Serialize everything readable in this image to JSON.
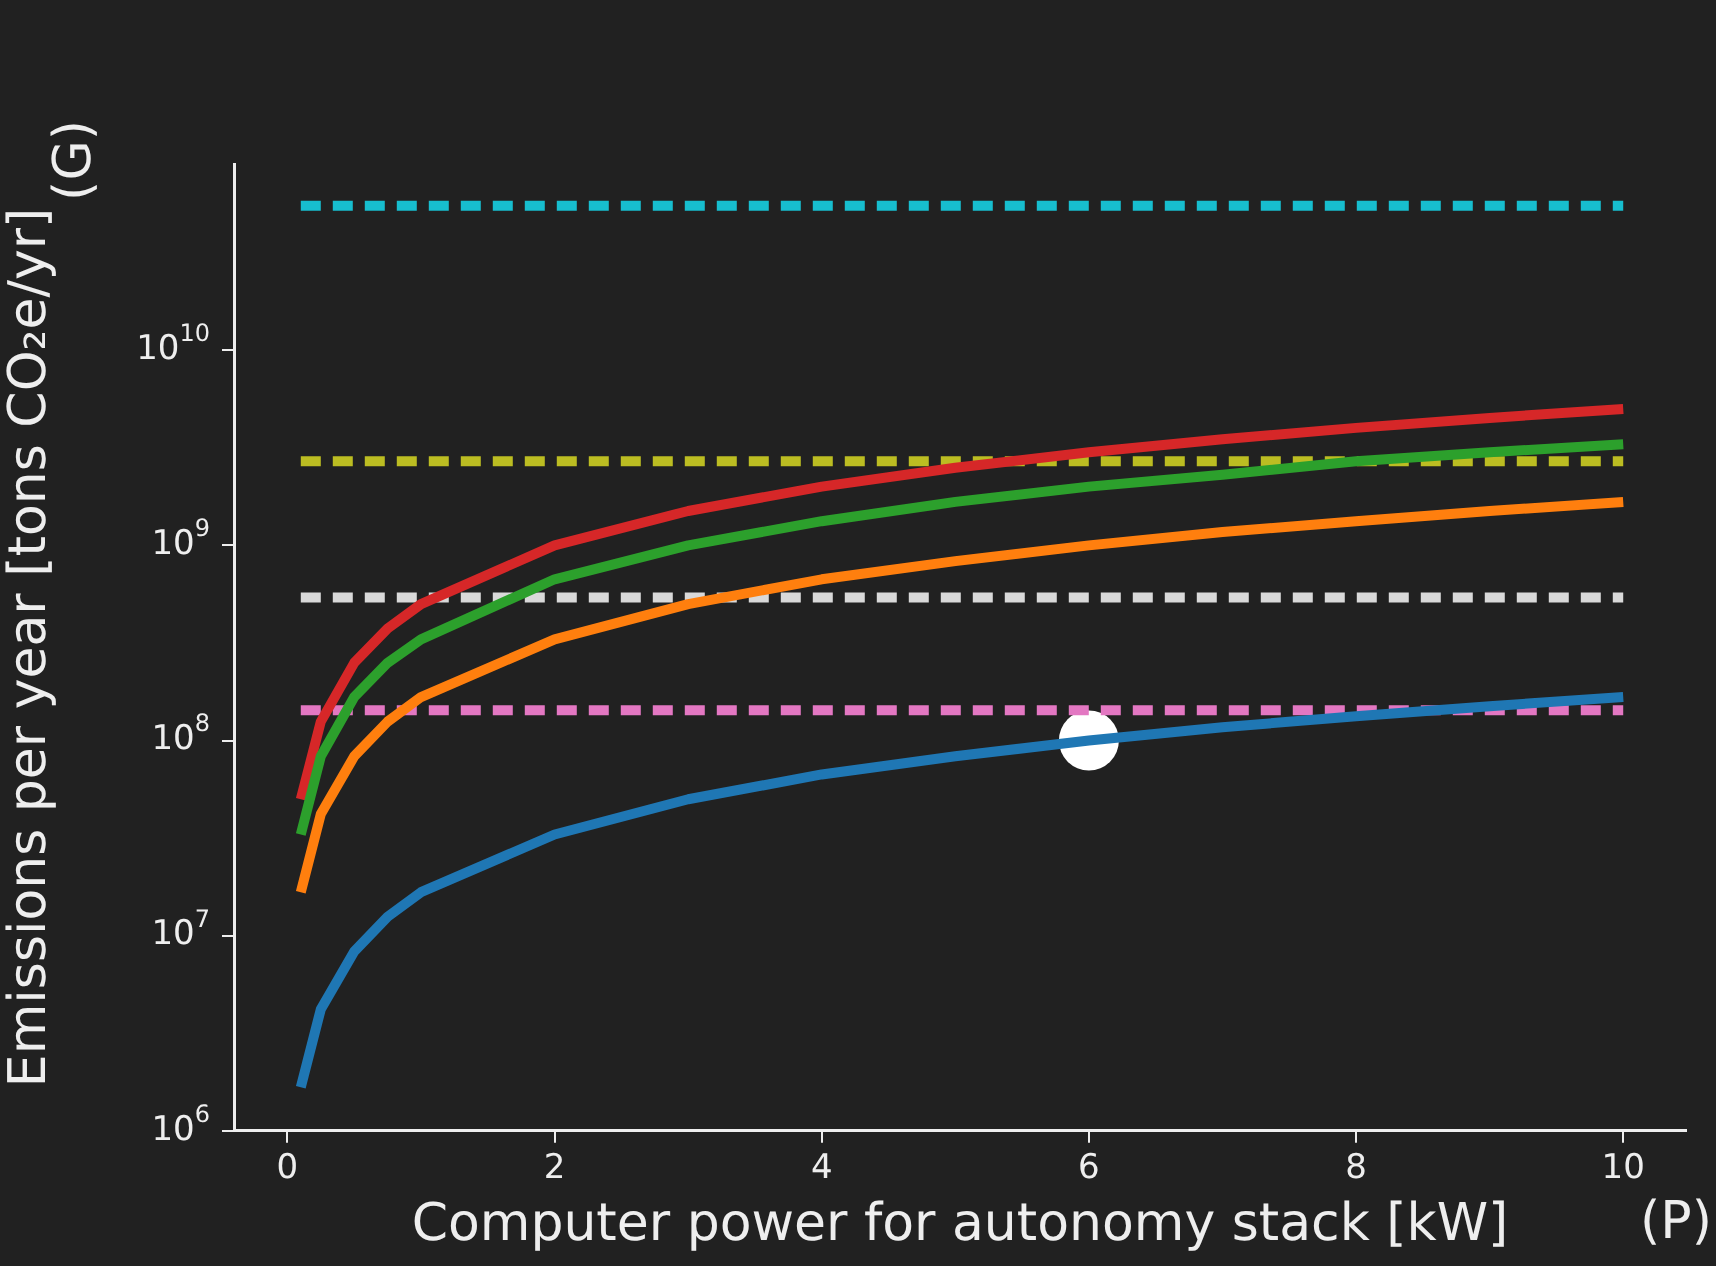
{
  "chart_data": {
    "type": "line",
    "xlabel": "Computer power for autonomy stack [kW]",
    "ylabel": "Emissions per year [tons CO₂e/yr]",
    "annotations": [
      "(G)",
      "(P)"
    ],
    "x": [
      0.1,
      0.25,
      0.5,
      0.75,
      1,
      2,
      3,
      4,
      5,
      6,
      7,
      8,
      9,
      10
    ],
    "series": [
      {
        "color": "#1f77b4",
        "marker": "none",
        "values": [
          1670000.0,
          4200000.0,
          8300000.0,
          12500000.0,
          16700000.0,
          33000000.0,
          50000000.0,
          67000000.0,
          83000000.0,
          100000000.0,
          117000000.0,
          133000000.0,
          150000000.0,
          167000000.0
        ]
      },
      {
        "color": "#ff7f0e",
        "marker": "none",
        "values": [
          16700000.0,
          42000000.0,
          83000000.0,
          125000000.0,
          167000000.0,
          330000000.0,
          500000000.0,
          670000000.0,
          830000000.0,
          1000000000.0,
          1170000000.0,
          1330000000.0,
          1500000000.0,
          1670000000.0
        ]
      },
      {
        "color": "#2ca02c",
        "marker": "none",
        "values": [
          33000000.0,
          83000000.0,
          167000000.0,
          250000000.0,
          330000000.0,
          670000000.0,
          1000000000.0,
          1330000000.0,
          1670000000.0,
          2000000000.0,
          2300000000.0,
          2700000000.0,
          3000000000.0,
          3300000000.0
        ]
      },
      {
        "color": "#d62728",
        "marker": "none",
        "values": [
          50000000.0,
          125000000.0,
          250000000.0,
          375000000.0,
          500000000.0,
          1000000000.0,
          1500000000.0,
          2000000000.0,
          2500000000.0,
          3000000000.0,
          3500000000.0,
          4000000000.0,
          4500000000.0,
          5000000000.0
        ]
      },
      {
        "color": "#17becf",
        "marker": "none",
        "line_style": "dashed",
        "x": [
          0.1,
          10
        ],
        "values": [
          55000000000.0,
          55000000000.0
        ]
      },
      {
        "color": "#bcbd22",
        "marker": "none",
        "line_style": "dashed",
        "x": [
          0.1,
          10
        ],
        "values": [
          2700000000.0,
          2700000000.0
        ]
      },
      {
        "color": "#d9d9d9",
        "marker": "none",
        "line_style": "dashed",
        "x": [
          0.1,
          10
        ],
        "values": [
          540000000.0,
          540000000.0
        ]
      },
      {
        "color": "#e377c2",
        "marker": "none",
        "line_style": "dashed",
        "x": [
          0.1,
          10
        ],
        "values": [
          143000000.0,
          143000000.0
        ]
      },
      {
        "type": "scatter",
        "color": "#ffffff",
        "marker": "circle",
        "x": [
          6
        ],
        "values": [
          100000000.0
        ]
      }
    ],
    "xlim": [
      -0.4,
      10.47
    ],
    "xticks": [
      0,
      2,
      4,
      6,
      8,
      10
    ],
    "log": "y",
    "ylim": [
      1000000.0,
      90000000000.0
    ],
    "yticks": [
      {
        "value": 1000000.0,
        "label": "10$^{6}$"
      },
      {
        "value": 10000000.0,
        "label": "10$^{7}$"
      },
      {
        "value": 100000000.0,
        "label": "10$^{8}$"
      },
      {
        "value": 1000000000.0,
        "label": "10$^{9}$"
      },
      {
        "value": 10000000000.0,
        "label": "10$^{10}$"
      }
    ],
    "grid": false,
    "legend": false
  }
}
